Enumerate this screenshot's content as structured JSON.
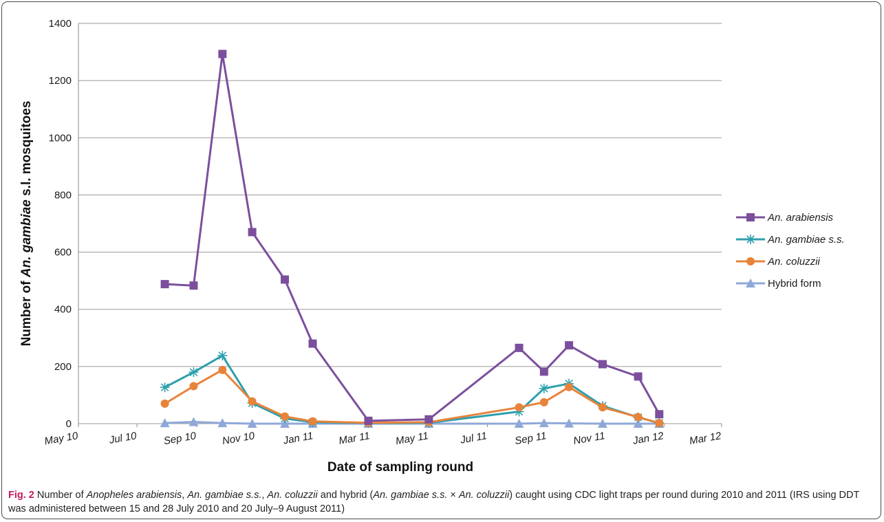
{
  "chart_data": {
    "type": "line",
    "ylabel_parts": [
      "Number of ",
      "An. gambiae",
      " s.l. mosquitoes"
    ],
    "xlabel": "Date of sampling round",
    "ylim": [
      0,
      1400
    ],
    "yticks": [
      0,
      200,
      400,
      600,
      800,
      1000,
      1200,
      1400
    ],
    "xlim": [
      "2010-05-01",
      "2012-03-01"
    ],
    "xticks": [
      {
        "date": "2010-05-01",
        "label": "May 10"
      },
      {
        "date": "2010-07-01",
        "label": "Jul 10"
      },
      {
        "date": "2010-09-01",
        "label": "Sep 10"
      },
      {
        "date": "2010-11-01",
        "label": "Nov 10"
      },
      {
        "date": "2011-01-01",
        "label": "Jan 11"
      },
      {
        "date": "2011-03-01",
        "label": "Mar 11"
      },
      {
        "date": "2011-05-01",
        "label": "May 11"
      },
      {
        "date": "2011-07-01",
        "label": "Jul 11"
      },
      {
        "date": "2011-09-01",
        "label": "Sep 11"
      },
      {
        "date": "2011-11-01",
        "label": "Nov 11"
      },
      {
        "date": "2012-01-01",
        "label": "Jan 12"
      },
      {
        "date": "2012-03-01",
        "label": "Mar 12"
      }
    ],
    "grid": true,
    "legend_position": "right",
    "series": [
      {
        "name": "An. arabiensis",
        "italic": true,
        "color": "#7b4f9d",
        "marker": "square",
        "points": [
          [
            "2010-07-30",
            488
          ],
          [
            "2010-08-29",
            483
          ],
          [
            "2010-09-28",
            1293
          ],
          [
            "2010-10-29",
            670
          ],
          [
            "2010-12-02",
            504
          ],
          [
            "2010-12-31",
            280
          ],
          [
            "2011-02-27",
            10
          ],
          [
            "2011-05-01",
            15
          ],
          [
            "2011-08-03",
            265
          ],
          [
            "2011-08-29",
            182
          ],
          [
            "2011-09-24",
            274
          ],
          [
            "2011-10-29",
            208
          ],
          [
            "2011-12-05",
            165
          ],
          [
            "2011-12-27",
            33
          ]
        ]
      },
      {
        "name": "An. gambiae s.s.",
        "italic": true,
        "color": "#2e9fad",
        "marker": "asterisk",
        "points": [
          [
            "2010-07-30",
            127
          ],
          [
            "2010-08-29",
            180
          ],
          [
            "2010-09-28",
            238
          ],
          [
            "2010-10-29",
            72
          ],
          [
            "2010-12-02",
            18
          ],
          [
            "2010-12-31",
            5
          ],
          [
            "2011-02-27",
            2
          ],
          [
            "2011-05-01",
            3
          ],
          [
            "2011-08-03",
            42
          ],
          [
            "2011-08-29",
            123
          ],
          [
            "2011-09-24",
            140
          ],
          [
            "2011-10-29",
            62
          ],
          [
            "2011-12-05",
            22
          ],
          [
            "2011-12-27",
            2
          ]
        ]
      },
      {
        "name": "An. coluzzii",
        "italic": true,
        "color": "#e8833a",
        "marker": "circle",
        "points": [
          [
            "2010-07-30",
            70
          ],
          [
            "2010-08-29",
            131
          ],
          [
            "2010-09-28",
            188
          ],
          [
            "2010-10-29",
            78
          ],
          [
            "2010-12-02",
            25
          ],
          [
            "2010-12-31",
            8
          ],
          [
            "2011-02-27",
            3
          ],
          [
            "2011-05-01",
            5
          ],
          [
            "2011-08-03",
            57
          ],
          [
            "2011-08-29",
            75
          ],
          [
            "2011-09-24",
            128
          ],
          [
            "2011-10-29",
            57
          ],
          [
            "2011-12-05",
            23
          ],
          [
            "2011-12-27",
            2
          ]
        ]
      },
      {
        "name": "Hybrid form",
        "italic": false,
        "color": "#8fa8d8",
        "marker": "triangle",
        "points": [
          [
            "2010-07-30",
            2
          ],
          [
            "2010-08-29",
            6
          ],
          [
            "2010-09-28",
            2
          ],
          [
            "2010-10-29",
            0
          ],
          [
            "2010-12-02",
            0
          ],
          [
            "2010-12-31",
            0
          ],
          [
            "2011-02-27",
            0
          ],
          [
            "2011-05-01",
            0
          ],
          [
            "2011-08-03",
            0
          ],
          [
            "2011-08-29",
            2
          ],
          [
            "2011-09-24",
            1
          ],
          [
            "2011-10-29",
            0
          ],
          [
            "2011-12-05",
            0
          ],
          [
            "2011-12-27",
            0
          ]
        ]
      }
    ]
  },
  "caption": {
    "label": "Fig. 2",
    "parts": [
      {
        "t": "  Number of ",
        "i": false
      },
      {
        "t": "Anopheles arabiensis",
        "i": true
      },
      {
        "t": ", ",
        "i": false
      },
      {
        "t": "An. gambiae s.s.",
        "i": true
      },
      {
        "t": ", ",
        "i": false
      },
      {
        "t": "An. coluzzii",
        "i": true
      },
      {
        "t": " and hybrid (",
        "i": false
      },
      {
        "t": "An. gambiae s.s.",
        "i": true
      },
      {
        "t": " × ",
        "i": false
      },
      {
        "t": "An. coluzzii",
        "i": true
      },
      {
        "t": ") caught using CDC light traps per round during 2010 and 2011 (IRS using DDT was administered between 15 and 28 July 2010 and 20 July–9 August 2011)",
        "i": false
      }
    ]
  }
}
